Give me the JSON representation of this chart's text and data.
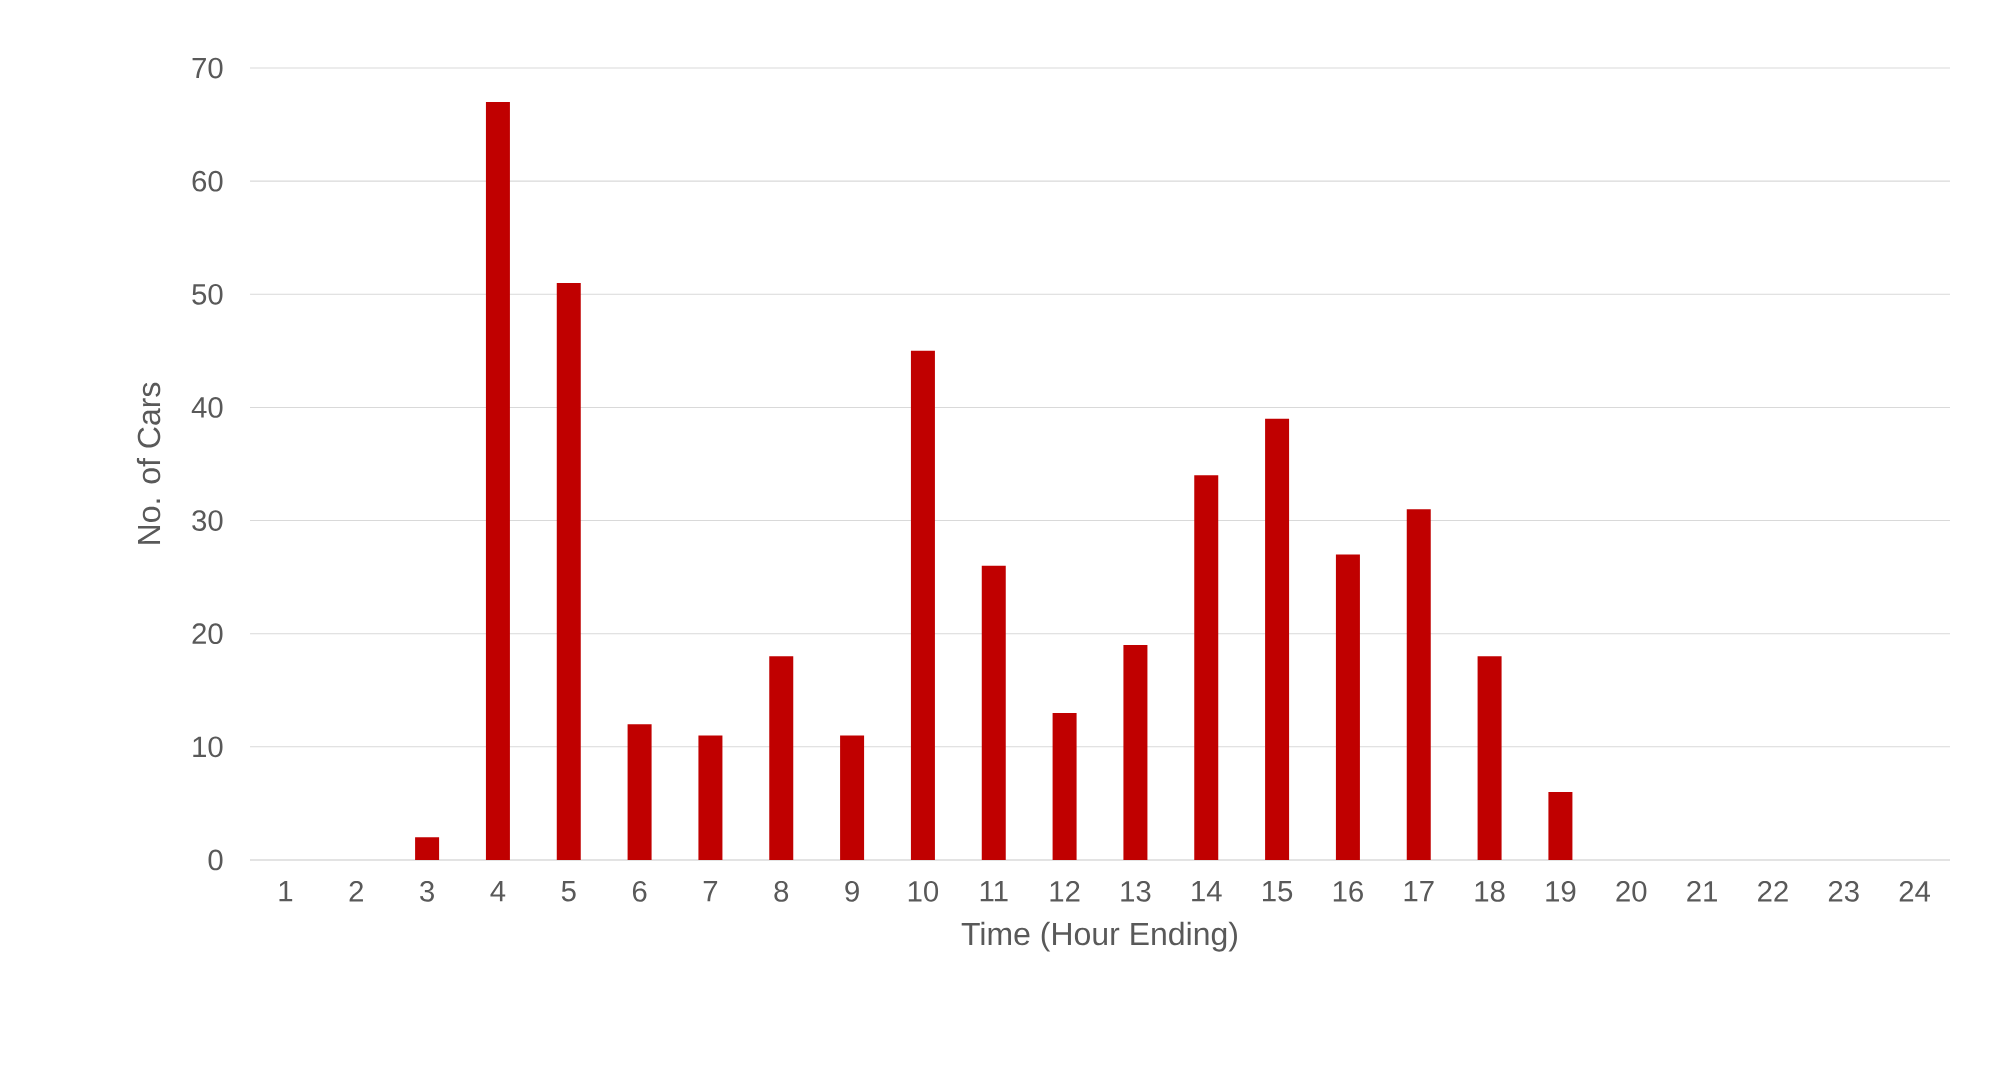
{
  "chart_data": {
    "type": "bar",
    "xlabel": "Time (Hour Ending)",
    "ylabel": "No. of Cars",
    "categories": [
      "1",
      "2",
      "3",
      "4",
      "5",
      "6",
      "7",
      "8",
      "9",
      "10",
      "11",
      "12",
      "13",
      "14",
      "15",
      "16",
      "17",
      "18",
      "19",
      "20",
      "21",
      "22",
      "23",
      "24"
    ],
    "values": [
      0,
      0,
      2,
      67,
      51,
      12,
      11,
      18,
      11,
      45,
      26,
      13,
      19,
      34,
      39,
      27,
      31,
      18,
      6,
      0,
      0,
      0,
      0,
      0
    ],
    "color": "#c00000",
    "ylim": [
      0,
      70
    ],
    "yticks": [
      0,
      10,
      20,
      30,
      40,
      50,
      60,
      70
    ],
    "grid": "y"
  }
}
